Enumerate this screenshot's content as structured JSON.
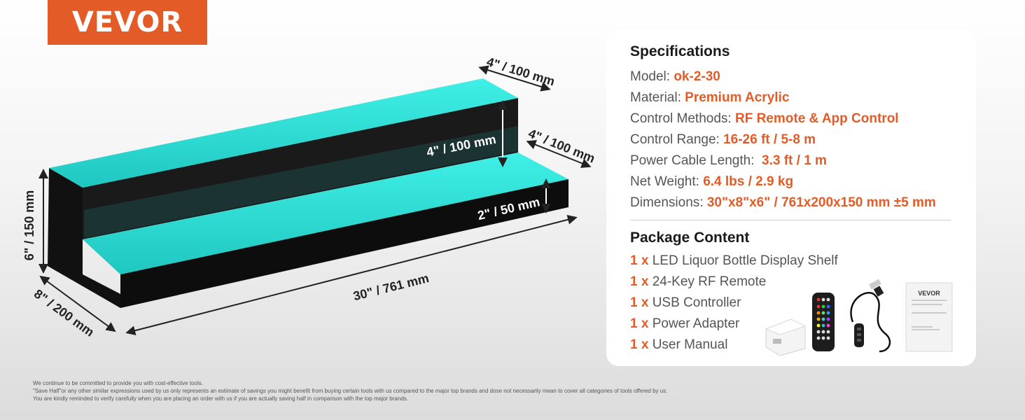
{
  "brand": {
    "logo_text": "VEVOR",
    "accent_color": "#e35b26"
  },
  "dimensions": {
    "height": "6\" / 150 mm",
    "depth": "8\" / 200 mm",
    "length": "30\" / 761 mm",
    "top_step_depth": "4\" / 100 mm",
    "lower_step_depth": "4\" / 100 mm",
    "step_rise": "4\" / 100 mm",
    "front_lip": "2\" / 50 mm"
  },
  "specifications": {
    "title": "Specifications",
    "rows": [
      {
        "label": "Model: ",
        "value": "ok-2-30"
      },
      {
        "label": "Material: ",
        "value": "Premium Acrylic"
      },
      {
        "label": "Control Methods: ",
        "value": "RF Remote & App Control"
      },
      {
        "label": "Control Range: ",
        "value": "16-26 ft / 5-8 m"
      },
      {
        "label": "Power Cable Length:  ",
        "value": "3.3 ft / 1 m"
      },
      {
        "label": "Net Weight: ",
        "value": "6.4 lbs / 2.9 kg"
      },
      {
        "label": "Dimensions: ",
        "value": "30\"x8\"x6\" / 761x200x150 mm ±5 mm"
      }
    ]
  },
  "package": {
    "title": "Package Content",
    "items": [
      {
        "qty": "1 x",
        "name": " LED Liquor Bottle Display Shelf"
      },
      {
        "qty": "1 x",
        "name": " 24-Key RF Remote"
      },
      {
        "qty": "1 x",
        "name": " USB Controller"
      },
      {
        "qty": "1 x",
        "name": " Power Adapter"
      },
      {
        "qty": "1 x",
        "name": " User Manual"
      }
    ],
    "manual_brand": "VEVOR"
  },
  "disclaimer": [
    "We continue to be committed to provide you with cost-effective tools.",
    "\"Save Half\"or any other similar expressions used by us only represents an estimate of savings you might benefit from buying certain tools with us compared to the major top brands and dose not necessarily mean to cover all categories of tools offered by us.",
    "You are kindly reminded to verify carefully when you are placing an order with us if you are actually saving half in comparison with the top major brands."
  ]
}
